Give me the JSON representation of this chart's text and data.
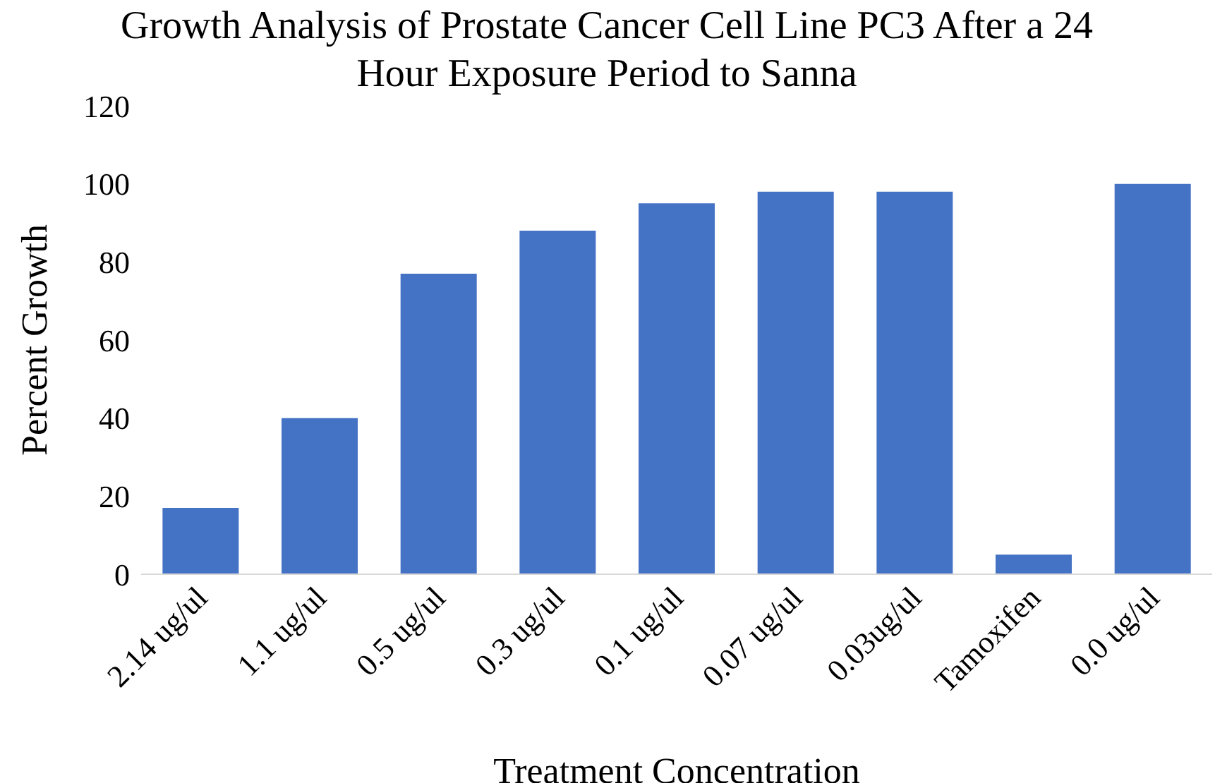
{
  "chart_data": {
    "type": "bar",
    "title": "Growth Analysis of Prostate Cancer Cell Line PC3 After a 24 Hour Exposure Period to Sanna",
    "xlabel": "Treatment Concentration",
    "ylabel": "Percent Growth",
    "categories": [
      "2.14 ug/ul",
      "1.1 ug/ul",
      "0.5 ug/ul",
      "0.3 ug/ul",
      "0.1 ug/ul",
      "0.07 ug/ul",
      "0.03ug/ul",
      "Tamoxifen",
      "0.0 ug/ul"
    ],
    "values": [
      17,
      40,
      77,
      88,
      95,
      98,
      98,
      5,
      100
    ],
    "color": "#4472c4",
    "ylim": [
      0,
      120
    ],
    "yticks": [
      0,
      20,
      40,
      60,
      80,
      100,
      120
    ],
    "grid": false,
    "legend": false
  }
}
